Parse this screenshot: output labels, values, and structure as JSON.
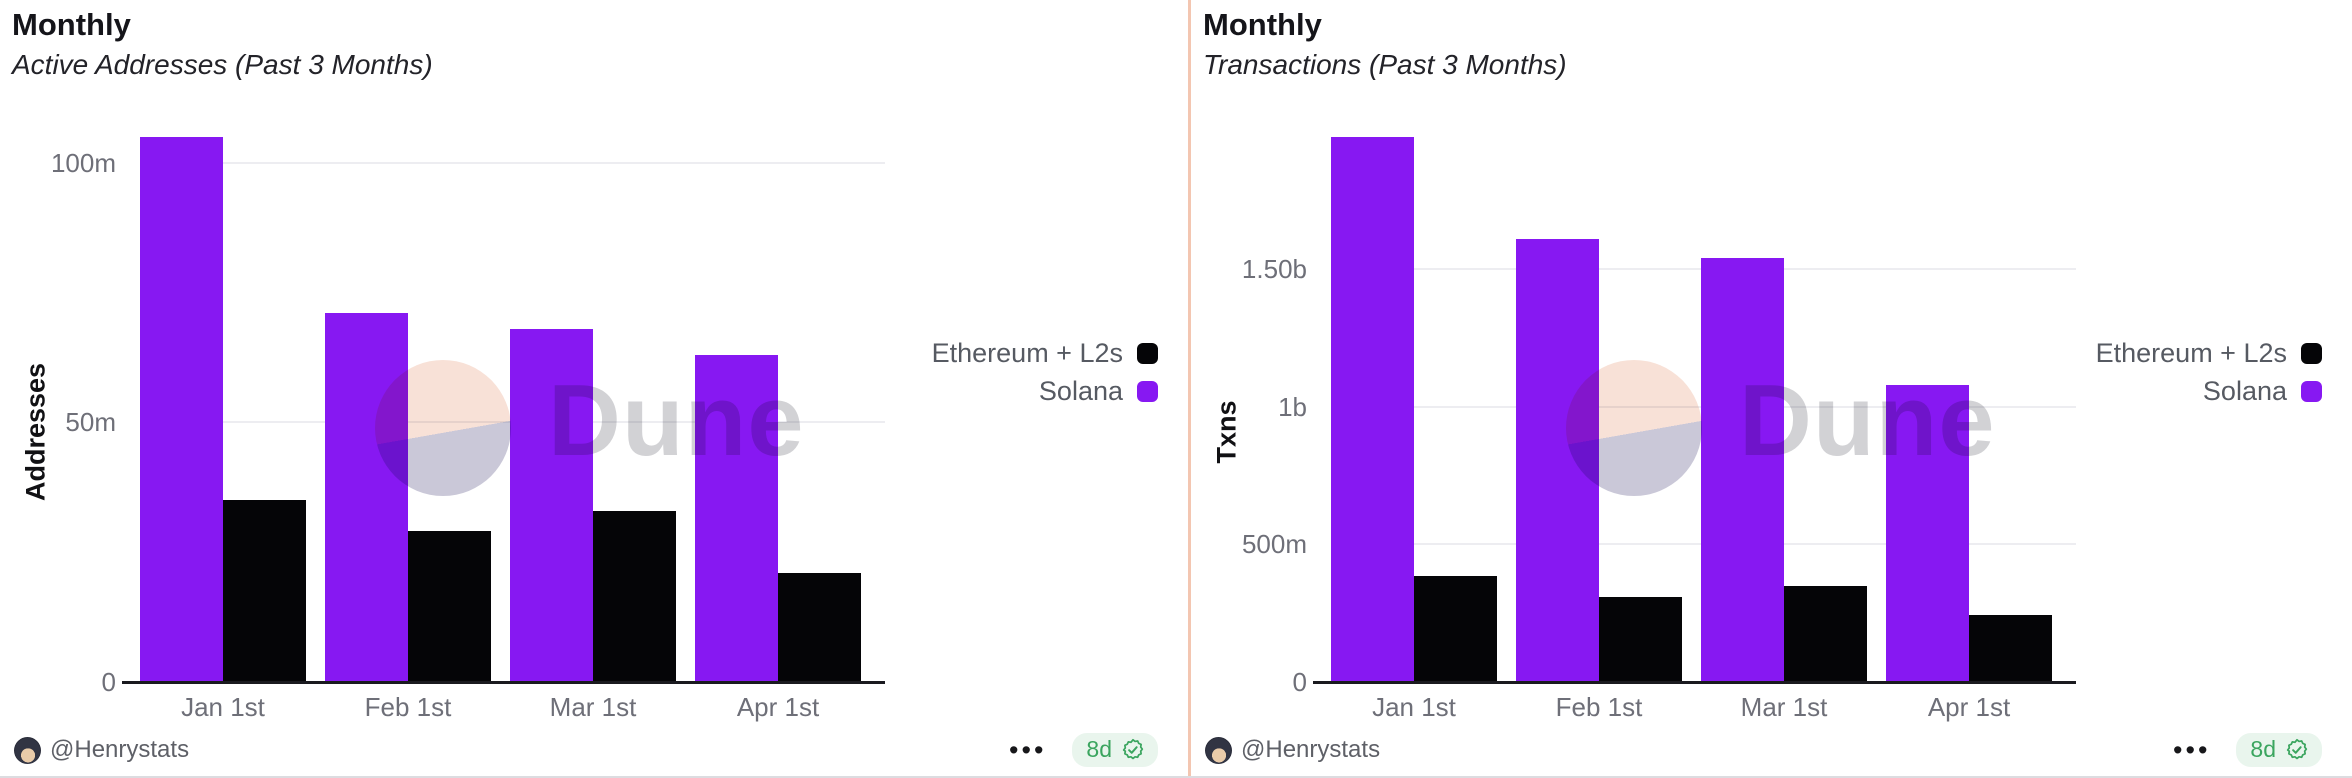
{
  "colors": {
    "solana_purple": "#8718f2",
    "ethereum_black": "#050507",
    "badge_green": "#3ba55f",
    "badge_bg": "#e9f5ed",
    "panel_divider_salmon": "#f3c6b1",
    "gridline": "#ededf1",
    "axis_text": "#6e6f78"
  },
  "icons": {
    "menu": "ellipsis-icon",
    "badge_check": "verified-seal-icon",
    "watermark": "dune-logo-icon"
  },
  "panels": [
    {
      "title": "Monthly",
      "subtitle": "Active Addresses (Past 3 Months)",
      "y_axis_title": "Addresses",
      "watermark": "Dune",
      "author": "@Henrystats",
      "menu_glyph": "•••",
      "badge_label": "8d",
      "legend": [
        {
          "label": "Ethereum + L2s",
          "color": "#050507"
        },
        {
          "label": "Solana",
          "color": "#8718f2"
        }
      ],
      "chart_data": {
        "type": "bar",
        "title": "Monthly",
        "subtitle": "Active Addresses (Past 3 Months)",
        "xlabel": "",
        "ylabel": "Addresses",
        "unit": "millions",
        "categories": [
          "Jan 1st",
          "Feb 1st",
          "Mar 1st",
          "Apr 1st"
        ],
        "series": [
          {
            "name": "Solana",
            "color": "#8718f2",
            "values": [
              105,
              71,
              68,
              63
            ]
          },
          {
            "name": "Ethereum + L2s",
            "color": "#050507",
            "values": [
              35,
              29,
              33,
              21
            ]
          }
        ],
        "yticks": [
          {
            "value": 0,
            "label": "0"
          },
          {
            "value": 50,
            "label": "50m"
          },
          {
            "value": 100,
            "label": "100m"
          }
        ],
        "ylim": [
          0,
          115
        ],
        "grid": true,
        "legend_position": "right"
      }
    },
    {
      "title": "Monthly",
      "subtitle": "Transactions (Past 3 Months)",
      "y_axis_title": "Txns",
      "watermark": "Dune",
      "author": "@Henrystats",
      "menu_glyph": "•••",
      "badge_label": "8d",
      "legend": [
        {
          "label": "Ethereum + L2s",
          "color": "#050507"
        },
        {
          "label": "Solana",
          "color": "#8718f2"
        }
      ],
      "chart_data": {
        "type": "bar",
        "title": "Monthly",
        "subtitle": "Transactions (Past 3 Months)",
        "xlabel": "",
        "ylabel": "Txns",
        "unit": "millions",
        "categories": [
          "Jan 1st",
          "Feb 1st",
          "Mar 1st",
          "Apr 1st"
        ],
        "series": [
          {
            "name": "Solana",
            "color": "#8718f2",
            "values": [
              1980,
              1610,
              1540,
              1080
            ]
          },
          {
            "name": "Ethereum + L2s",
            "color": "#050507",
            "values": [
              385,
              310,
              350,
              245
            ]
          }
        ],
        "yticks": [
          {
            "value": 0,
            "label": "0"
          },
          {
            "value": 500,
            "label": "500m"
          },
          {
            "value": 1000,
            "label": "1b"
          },
          {
            "value": 1500,
            "label": "1.50b"
          }
        ],
        "ylim": [
          0,
          2170
        ],
        "grid": true,
        "legend_position": "right"
      }
    }
  ]
}
